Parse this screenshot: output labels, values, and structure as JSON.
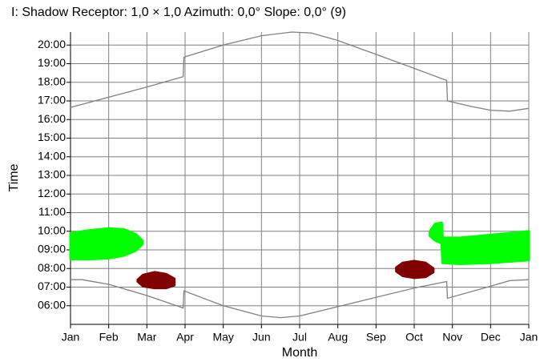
{
  "chart_data": {
    "type": "line",
    "title": "I: Shadow Receptor: 1,0 × 1,0  Azimuth: 0,0°  Slope: 0,0° (9)",
    "x_label": "Month",
    "y_label": "Time",
    "xlim": [
      0,
      12
    ],
    "ylim": [
      5.0,
      20.7
    ],
    "xticks": [
      {
        "value": 0,
        "label": "Jan"
      },
      {
        "value": 1,
        "label": "Feb"
      },
      {
        "value": 2,
        "label": "Mar"
      },
      {
        "value": 3,
        "label": "Apr"
      },
      {
        "value": 4,
        "label": "May"
      },
      {
        "value": 5,
        "label": "Jun"
      },
      {
        "value": 6,
        "label": "Jul"
      },
      {
        "value": 7,
        "label": "Aug"
      },
      {
        "value": 8,
        "label": "Sep"
      },
      {
        "value": 9,
        "label": "Oct"
      },
      {
        "value": 10,
        "label": "Nov"
      },
      {
        "value": 11,
        "label": "Dec"
      },
      {
        "value": 12,
        "label": "Jan"
      }
    ],
    "yticks": [
      {
        "value": 6,
        "label": "06:00"
      },
      {
        "value": 7,
        "label": "07:00"
      },
      {
        "value": 8,
        "label": "08:00"
      },
      {
        "value": 9,
        "label": "09:00"
      },
      {
        "value": 10,
        "label": "10:00"
      },
      {
        "value": 11,
        "label": "11:00"
      },
      {
        "value": 12,
        "label": "12:00"
      },
      {
        "value": 13,
        "label": "13:00"
      },
      {
        "value": 14,
        "label": "14:00"
      },
      {
        "value": 15,
        "label": "15:00"
      },
      {
        "value": 16,
        "label": "16:00"
      },
      {
        "value": 17,
        "label": "17:00"
      },
      {
        "value": 18,
        "label": "18:00"
      },
      {
        "value": 19,
        "label": "19:00"
      },
      {
        "value": 20,
        "label": "20:00"
      }
    ],
    "grid": true,
    "series": [
      {
        "color": "#808080",
        "x": [
          0,
          1,
          2,
          2.95,
          2.97,
          4,
          5,
          5.8,
          6.3,
          7,
          8,
          9,
          9.85,
          9.87,
          10.5,
          11,
          11.5,
          12
        ],
        "values": [
          16.65,
          17.2,
          17.75,
          18.3,
          19.35,
          20.0,
          20.5,
          20.7,
          20.65,
          20.25,
          19.5,
          18.75,
          18.1,
          17.0,
          16.7,
          16.5,
          16.45,
          16.6
        ]
      },
      {
        "color": "#808080",
        "x": [
          0,
          0.3,
          1,
          2,
          2.95,
          2.97,
          4,
          5,
          5.5,
          6,
          7,
          8,
          9,
          9.85,
          9.87,
          11,
          11.5,
          12
        ],
        "values": [
          7.4,
          7.4,
          7.15,
          6.55,
          5.88,
          6.8,
          6.0,
          5.45,
          5.36,
          5.45,
          5.95,
          6.45,
          6.95,
          7.3,
          6.4,
          7.05,
          7.35,
          7.4
        ]
      }
    ],
    "regions": [
      {
        "color": "#00ff00",
        "x": [
          0,
          0.5,
          1.0,
          1.4,
          1.7,
          1.88
        ],
        "lower": [
          8.5,
          8.5,
          8.55,
          8.7,
          8.95,
          9.3
        ],
        "upper": [
          9.9,
          10.05,
          10.15,
          10.1,
          9.85,
          9.5
        ]
      },
      {
        "color": "#800000",
        "x": [
          1.76,
          1.9,
          2.2,
          2.5,
          2.72
        ],
        "lower": [
          7.3,
          7.05,
          6.95,
          6.95,
          7.1
        ],
        "upper": [
          7.4,
          7.65,
          7.8,
          7.7,
          7.45
        ]
      },
      {
        "color": "#800000",
        "x": [
          8.53,
          8.7,
          9.0,
          9.3,
          9.5
        ],
        "lower": [
          7.85,
          7.6,
          7.5,
          7.55,
          7.8
        ],
        "upper": [
          8.05,
          8.3,
          8.4,
          8.3,
          8.0
        ]
      },
      {
        "color": "#00ff00",
        "x": [
          9.41,
          9.55,
          9.72,
          9.74,
          10.2,
          11.0,
          12
        ],
        "lower": [
          9.75,
          9.5,
          9.35,
          8.3,
          8.25,
          8.3,
          8.45
        ],
        "upper": [
          10.0,
          10.4,
          10.45,
          9.65,
          9.65,
          9.8,
          10.0
        ]
      }
    ]
  }
}
